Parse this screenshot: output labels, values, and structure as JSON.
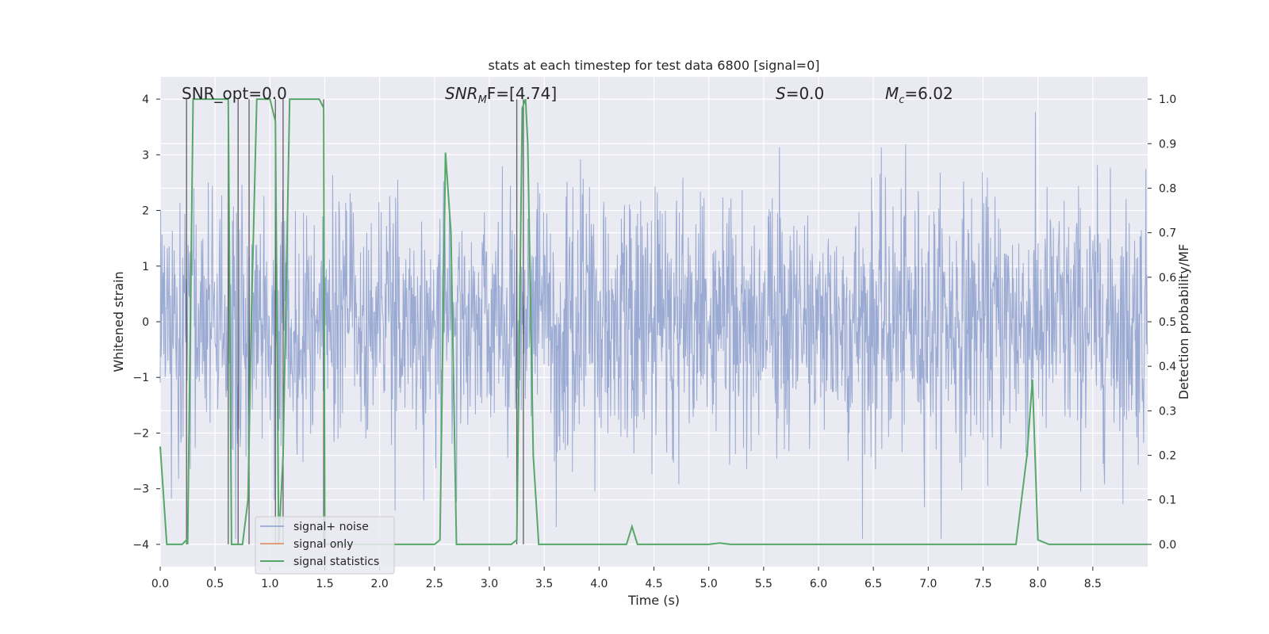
{
  "chart_data": {
    "type": "line",
    "title": "stats at each timestep for test data 6800 [signal=0]",
    "xlabel": "Time (s)",
    "ylabel": "Whitened strain",
    "ylabel_right": "Detection probability/MF",
    "xlim": [
      0.0,
      9.0
    ],
    "ylim": [
      -4.4,
      4.4
    ],
    "ylim_right": [
      -0.05,
      1.05
    ],
    "xticks": [
      "0.0",
      "0.5",
      "1.0",
      "1.5",
      "2.0",
      "2.5",
      "3.0",
      "3.5",
      "4.0",
      "4.5",
      "5.0",
      "5.5",
      "6.0",
      "6.5",
      "7.0",
      "7.5",
      "8.0",
      "8.5"
    ],
    "yticks": [
      "−4",
      "−3",
      "−2",
      "−1",
      "0",
      "1",
      "2",
      "3",
      "4"
    ],
    "yticks_right": [
      "0.0",
      "0.1",
      "0.2",
      "0.3",
      "0.4",
      "0.5",
      "0.6",
      "0.7",
      "0.8",
      "0.9",
      "1.0"
    ],
    "grid": true,
    "annotations": {
      "snr_opt": "SNR_opt=0.0",
      "snr_mf_main": "SNR",
      "snr_mf_sub": "M",
      "snr_mf_tail": "F=[4.74]",
      "s_var": "S",
      "s_tail": "=0.0",
      "mc_var": "M",
      "mc_sub": "c",
      "mc_tail": "=6.02"
    },
    "legend": {
      "placement": "lower-left",
      "entries": [
        "signal+ noise",
        "signal only",
        "signal statistics"
      ]
    },
    "colors": {
      "background": "#eaeaf2",
      "grid": "#ffffff",
      "noise": "#8c9fcc",
      "signal_only": "#dd8452",
      "statistics": "#55a868",
      "vline": "#333333"
    },
    "series": [
      {
        "name": "signal+ noise",
        "description_only": "dense whitened strain noise, amplitude mostly within ±2.5",
        "seed": 6800,
        "duration": 9.0,
        "samples": 2200
      },
      {
        "name": "signal only",
        "values": []
      },
      {
        "name": "signal statistics",
        "x": [
          0.0,
          0.06,
          0.1,
          0.15,
          0.2,
          0.24,
          0.25,
          0.3,
          0.35,
          0.4,
          0.5,
          0.55,
          0.62,
          0.65,
          0.7,
          0.75,
          0.8,
          0.83,
          0.88,
          1.0,
          1.05,
          1.08,
          1.12,
          1.18,
          1.3,
          1.4,
          1.45,
          1.49,
          1.5,
          1.55,
          1.6,
          1.7,
          2.0,
          2.5,
          2.55,
          2.6,
          2.65,
          2.7,
          2.75,
          3.0,
          3.2,
          3.25,
          3.3,
          3.33,
          3.35,
          3.4,
          3.45,
          3.5,
          4.0,
          4.25,
          4.3,
          4.35,
          4.4,
          5.0,
          5.1,
          5.2,
          7.8,
          7.9,
          7.95,
          8.0,
          8.05,
          8.1,
          8.2,
          9.0
        ],
        "y": [
          0.22,
          0.0,
          0.0,
          0.0,
          0.0,
          0.01,
          0.0,
          1.0,
          1.0,
          1.0,
          1.0,
          1.0,
          1.0,
          0.0,
          0.0,
          0.0,
          0.1,
          0.5,
          1.0,
          1.0,
          0.95,
          0.0,
          0.2,
          1.0,
          1.0,
          1.0,
          1.0,
          0.98,
          0.0,
          0.0,
          0.0,
          0.0,
          0.0,
          0.0,
          0.01,
          0.88,
          0.7,
          0.0,
          0.0,
          0.0,
          0.0,
          0.01,
          0.98,
          1.0,
          0.9,
          0.2,
          0.0,
          0.0,
          0.0,
          0.0,
          0.04,
          0.0,
          0.0,
          0.0,
          0.003,
          0.0,
          0.0,
          0.2,
          0.37,
          0.01,
          0.005,
          0.0,
          0.0,
          0.0
        ]
      }
    ],
    "vlines_x": [
      0.24,
      0.62,
      0.71,
      0.81,
      1.05,
      1.12,
      1.49,
      3.25,
      3.31
    ]
  }
}
